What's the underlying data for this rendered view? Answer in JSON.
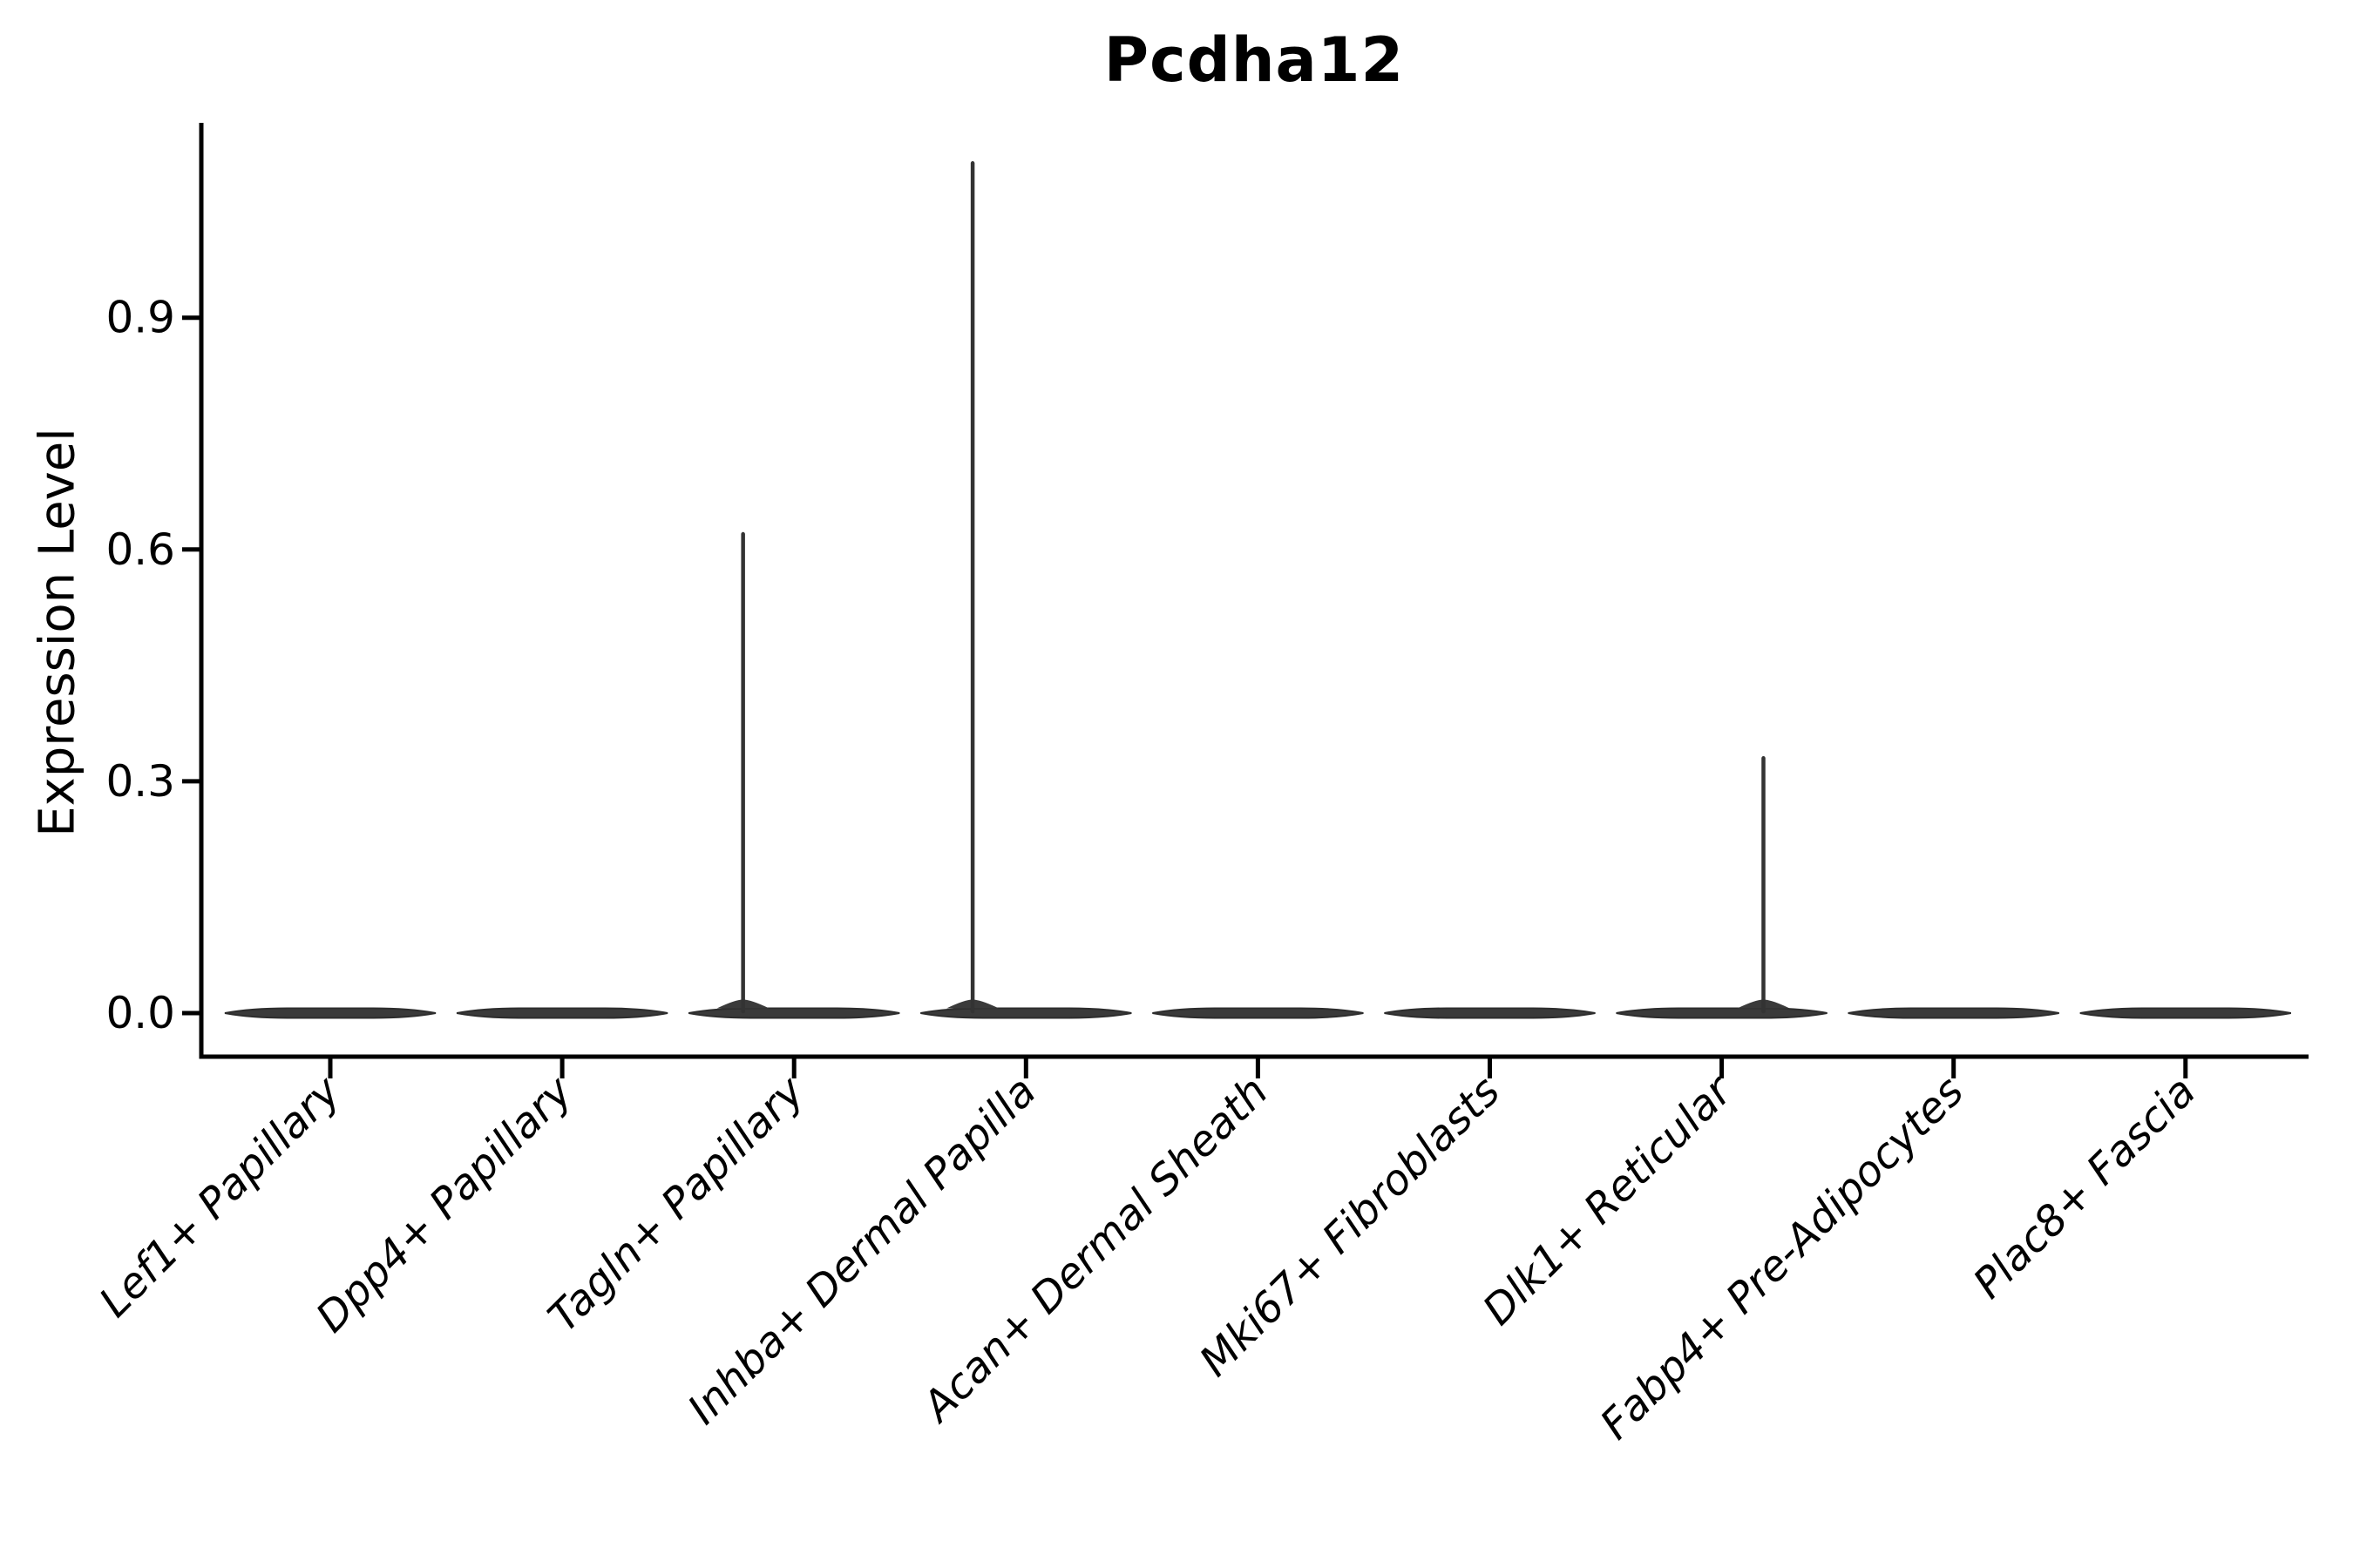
{
  "figure": {
    "background_color": "#ffffff",
    "text_color": "#000000",
    "violin_fill_color": "#3a3a3a",
    "violin_edge_color": "#2d2d2d",
    "spike_color": "#333333",
    "axis_color": "#000000"
  },
  "chart_data": {
    "type": "violin",
    "title": "Pcdha12",
    "xlabel": "",
    "ylabel": "Expression Level",
    "ytick_labels": [
      "0.0",
      "0.3",
      "0.6",
      "0.9"
    ],
    "ytick_values": [
      0.0,
      0.3,
      0.6,
      0.9
    ],
    "ylim": [
      0,
      1.15
    ],
    "grid": false,
    "legend": false,
    "categories": [
      "Lef1+ Papillary",
      "Dpp4+ Papillary",
      "Tagln+ Papillary",
      "Inhba+ Dermal Papilla",
      "Acan+ Dermal Sheath",
      "Mki67+ Fibroblasts",
      "Dlk1+ Reticular",
      "Fabp4+ Pre-Adipocytes",
      "Plac8+ Fascia"
    ],
    "series": [
      {
        "category": "Lef1+ Papillary",
        "max_expression": 0,
        "bulk_at_zero": true,
        "spike_x_offset_frac": 0
      },
      {
        "category": "Dpp4+ Papillary",
        "max_expression": 0,
        "bulk_at_zero": true,
        "spike_x_offset_frac": 0
      },
      {
        "category": "Tagln+ Papillary",
        "max_expression": 0.62,
        "bulk_at_zero": true,
        "spike_x_offset_frac": -0.22
      },
      {
        "category": "Inhba+ Dermal Papilla",
        "max_expression": 1.1,
        "bulk_at_zero": true,
        "spike_x_offset_frac": -0.23
      },
      {
        "category": "Acan+ Dermal Sheath",
        "max_expression": 0,
        "bulk_at_zero": true,
        "spike_x_offset_frac": 0
      },
      {
        "category": "Mki67+ Fibroblasts",
        "max_expression": 0,
        "bulk_at_zero": true,
        "spike_x_offset_frac": 0
      },
      {
        "category": "Dlk1+ Reticular",
        "max_expression": 0.33,
        "bulk_at_zero": true,
        "spike_x_offset_frac": 0.18
      },
      {
        "category": "Fabp4+ Pre-Adipocytes",
        "max_expression": 0,
        "bulk_at_zero": true,
        "spike_x_offset_frac": 0
      },
      {
        "category": "Plac8+ Fascia",
        "max_expression": 0,
        "bulk_at_zero": true,
        "spike_x_offset_frac": 0
      }
    ]
  }
}
